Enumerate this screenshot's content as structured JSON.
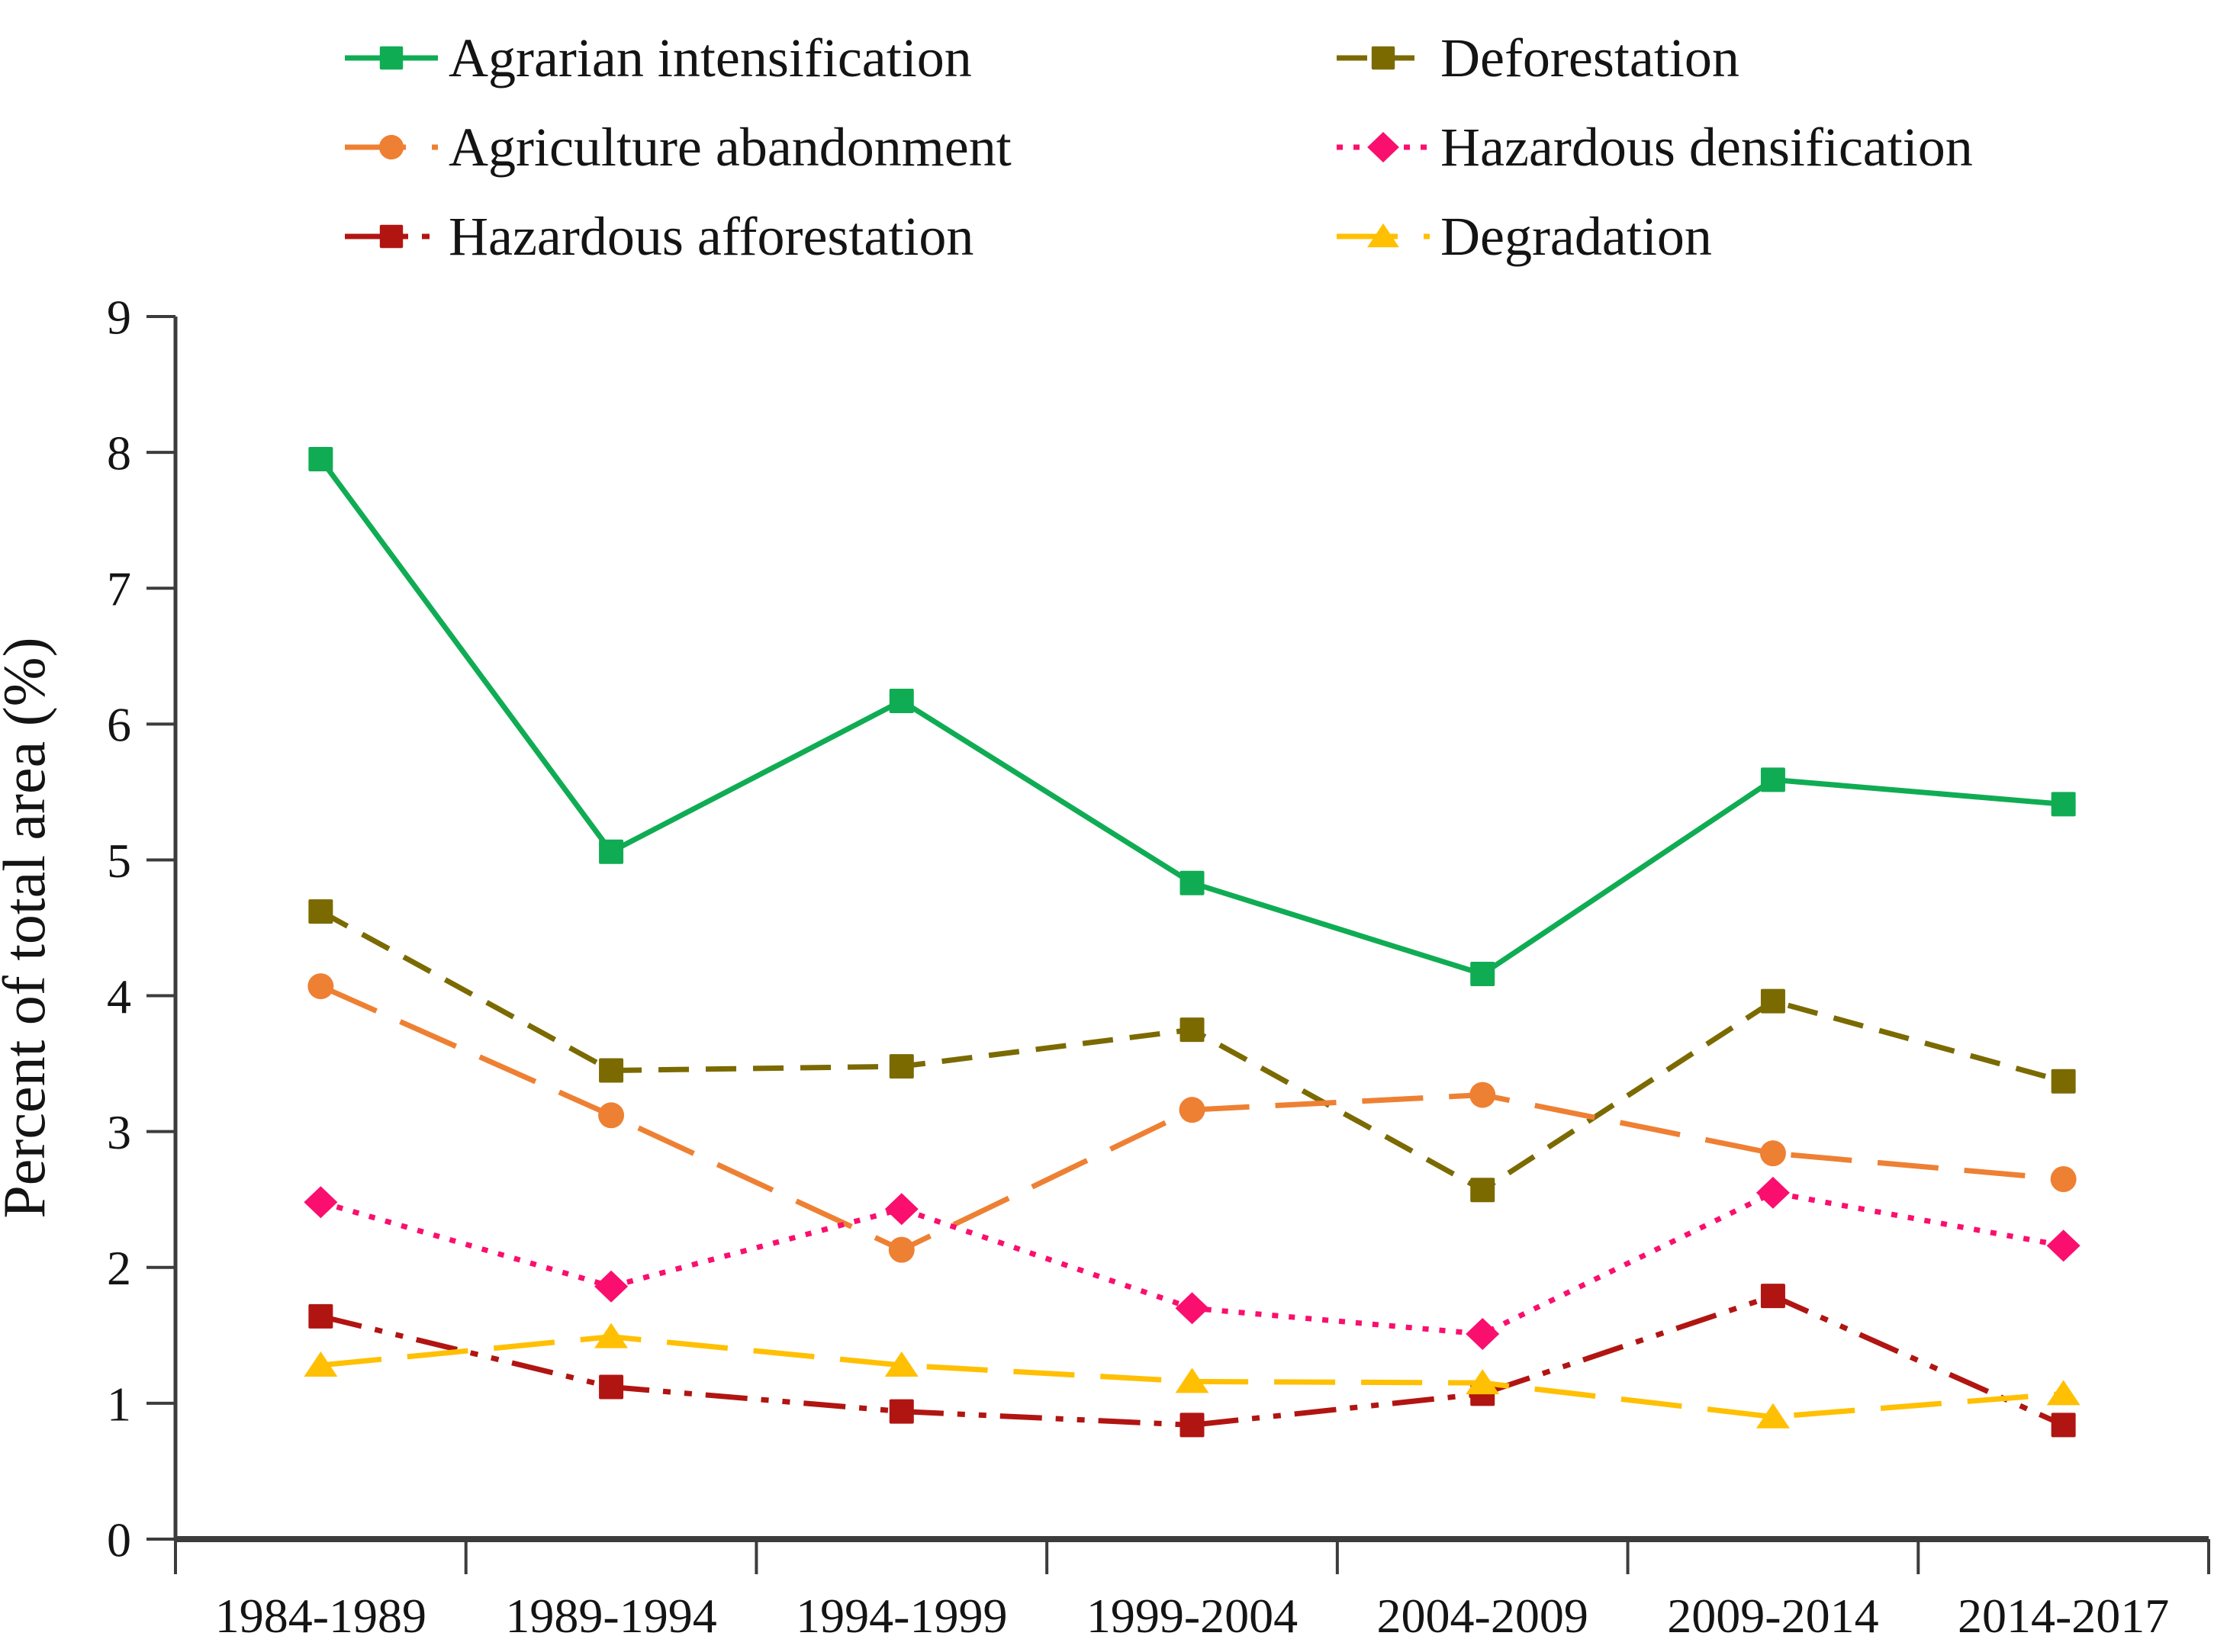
{
  "figure": {
    "background": "#ffffff",
    "axis_color": "#3c3c3c",
    "text_color": "#141414"
  },
  "chart_data": {
    "type": "line",
    "title": "",
    "xlabel": "",
    "ylabel": "Percent of total area (%)",
    "ylim": [
      0,
      9
    ],
    "yticks": [
      "0",
      "1",
      "2",
      "3",
      "4",
      "5",
      "6",
      "7",
      "8",
      "9"
    ],
    "categories": [
      "1984-1989",
      "1989-1994",
      "1994-1999",
      "1999-2004",
      "2004-2009",
      "2009-2014",
      "2014-2017"
    ],
    "grid": false,
    "legend_position": "top",
    "series": [
      {
        "name": "Agrarian intensification",
        "color": "#10ac54",
        "line_style": "solid",
        "marker": "square",
        "values": [
          7.95,
          5.06,
          6.17,
          4.83,
          4.16,
          5.59,
          5.41
        ]
      },
      {
        "name": "Deforestation",
        "color": "#7b6a00",
        "line_style": "dash",
        "marker": "square",
        "values": [
          4.62,
          3.45,
          3.48,
          3.75,
          2.57,
          3.96,
          3.37
        ]
      },
      {
        "name": "Agriculture abandonment",
        "color": "#ee8033",
        "line_style": "longdash",
        "marker": "circle",
        "values": [
          4.07,
          3.12,
          2.13,
          3.16,
          3.27,
          2.84,
          2.65
        ]
      },
      {
        "name": "Hazardous densification",
        "color": "#fa0f6e",
        "line_style": "dot",
        "marker": "diamond",
        "values": [
          2.48,
          1.86,
          2.43,
          1.7,
          1.51,
          2.55,
          2.16
        ]
      },
      {
        "name": "Hazardous afforestation",
        "color": "#b11512",
        "line_style": "dashdotdot",
        "marker": "square",
        "values": [
          1.64,
          1.12,
          0.94,
          0.84,
          1.07,
          1.79,
          0.84
        ]
      },
      {
        "name": "Degradation",
        "color": "#ffc003",
        "line_style": "longdash",
        "marker": "triangle",
        "values": [
          1.28,
          1.49,
          1.28,
          1.16,
          1.15,
          0.9,
          1.07
        ]
      }
    ]
  }
}
